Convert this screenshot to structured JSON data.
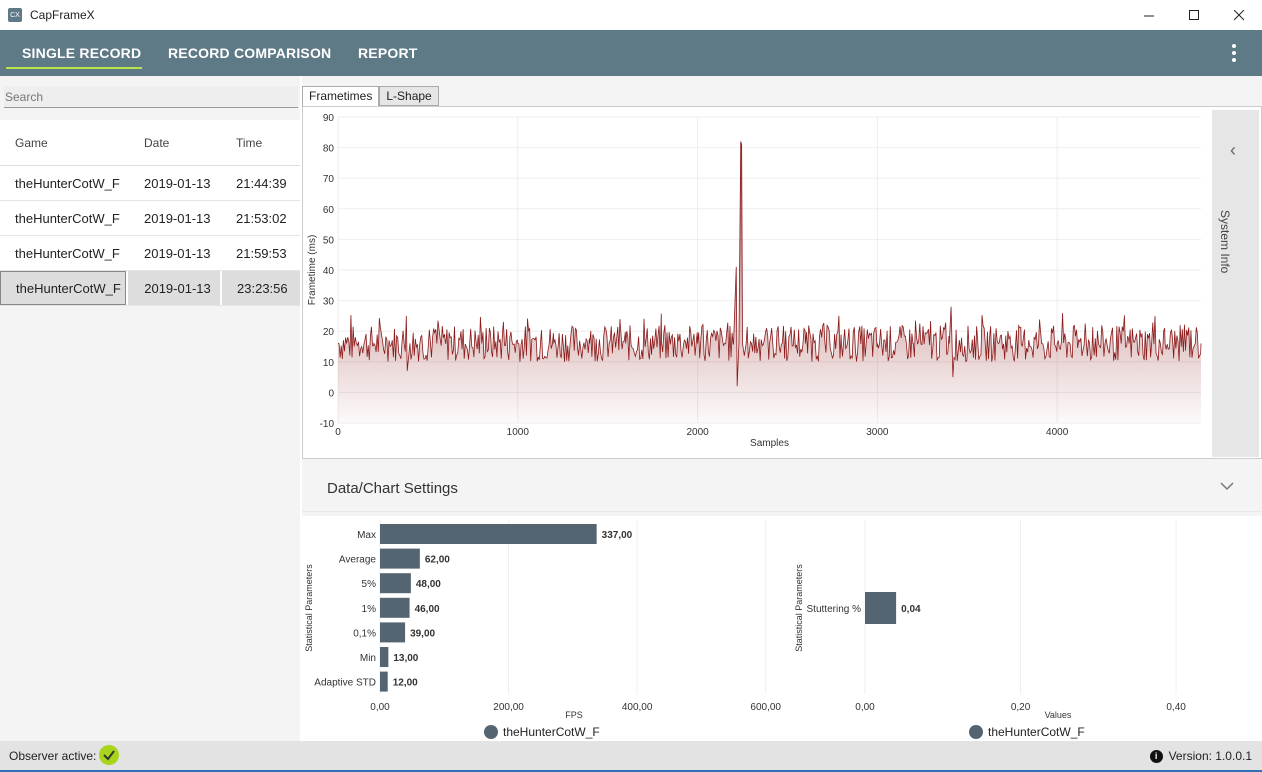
{
  "window": {
    "title": "CapFrameX",
    "icon_text": "CX",
    "controls": {
      "minimize": "—",
      "maximize": "☐",
      "close": "✕"
    }
  },
  "nav": {
    "tabs": [
      "SINGLE RECORD",
      "RECORD COMPARISON",
      "REPORT"
    ],
    "active_tab": "SINGLE RECORD"
  },
  "search": {
    "placeholder": "Search"
  },
  "records": {
    "headers": {
      "game": "Game",
      "date": "Date",
      "time": "Time"
    },
    "rows": [
      {
        "game": "theHunterCotW_F",
        "date": "2019-01-13",
        "time": "21:44:39"
      },
      {
        "game": "theHunterCotW_F",
        "date": "2019-01-13",
        "time": "21:53:02"
      },
      {
        "game": "theHunterCotW_F",
        "date": "2019-01-13",
        "time": "21:59:53"
      },
      {
        "game": "theHunterCotW_F",
        "date": "2019-01-13",
        "time": "23:23:56"
      }
    ],
    "selected_index": 3
  },
  "chart_tabs": {
    "frametimes": "Frametimes",
    "lshape": "L-Shape",
    "active": "Frametimes"
  },
  "system_info": {
    "label": "System Info"
  },
  "settings": {
    "label": "Data/Chart Settings"
  },
  "chart_data": [
    {
      "type": "line",
      "xlabel": "Samples",
      "ylabel": "Frametime (ms)",
      "xlim": [
        0,
        4800
      ],
      "ylim": [
        -10,
        90
      ],
      "xticks": [
        0,
        1000,
        2000,
        3000,
        4000
      ],
      "yticks": [
        90,
        80,
        70,
        60,
        50,
        40,
        30,
        20,
        10,
        0,
        -10
      ],
      "color": "#8b1a1a",
      "baseline": 16,
      "series": [
        {
          "x": [
            0,
            200,
            380,
            385,
            400,
            600,
            800,
            1000,
            1200,
            1400,
            1600,
            1800,
            2000,
            2150,
            2200,
            2215,
            2220,
            2230,
            2240,
            2245,
            2250,
            2260,
            2270,
            2300,
            2400,
            2600,
            2800,
            3000,
            3200,
            3400,
            3410,
            3420,
            3600,
            3800,
            4000,
            4200,
            4400,
            4600,
            4800
          ],
          "y": [
            16,
            16,
            25,
            7,
            16,
            16,
            16,
            16,
            16,
            16,
            16,
            16,
            16,
            16,
            16,
            41,
            2,
            16,
            82,
            81,
            16,
            12,
            16,
            16,
            16,
            16,
            16,
            16,
            16,
            16,
            28,
            5,
            16,
            16,
            16,
            16,
            16,
            16,
            16
          ]
        }
      ]
    },
    {
      "type": "bar",
      "orientation": "horizontal",
      "ylabel": "Statistical Parameters",
      "xlabel": "FPS",
      "categories": [
        "Max",
        "Average",
        "5%",
        "1%",
        "0,1%",
        "Min",
        "Adaptive STD"
      ],
      "values": [
        337.0,
        62.0,
        48.0,
        46.0,
        39.0,
        13.0,
        12.0
      ],
      "value_labels": [
        "337,00",
        "62,00",
        "48,00",
        "46,00",
        "39,00",
        "13,00",
        "12,00"
      ],
      "xticks": [
        "0,00",
        "200,00",
        "400,00",
        "600,00"
      ],
      "xlim": [
        0,
        700
      ],
      "legend": "theHunterCotW_F",
      "color": "#546470"
    },
    {
      "type": "bar",
      "orientation": "horizontal",
      "ylabel": "Statistical Parameters",
      "xlabel": "Values",
      "categories": [
        "Stuttering %"
      ],
      "values": [
        0.04
      ],
      "value_labels": [
        "0,04"
      ],
      "xticks": [
        "0,00",
        "0,20",
        "0,40"
      ],
      "xlim": [
        0,
        0.45
      ],
      "legend": "theHunterCotW_F",
      "color": "#546470"
    }
  ],
  "status": {
    "observer_label": "Observer active:",
    "version_label": "Version:",
    "version": "1.0.0.1",
    "observer_color": "#a8d51b"
  }
}
